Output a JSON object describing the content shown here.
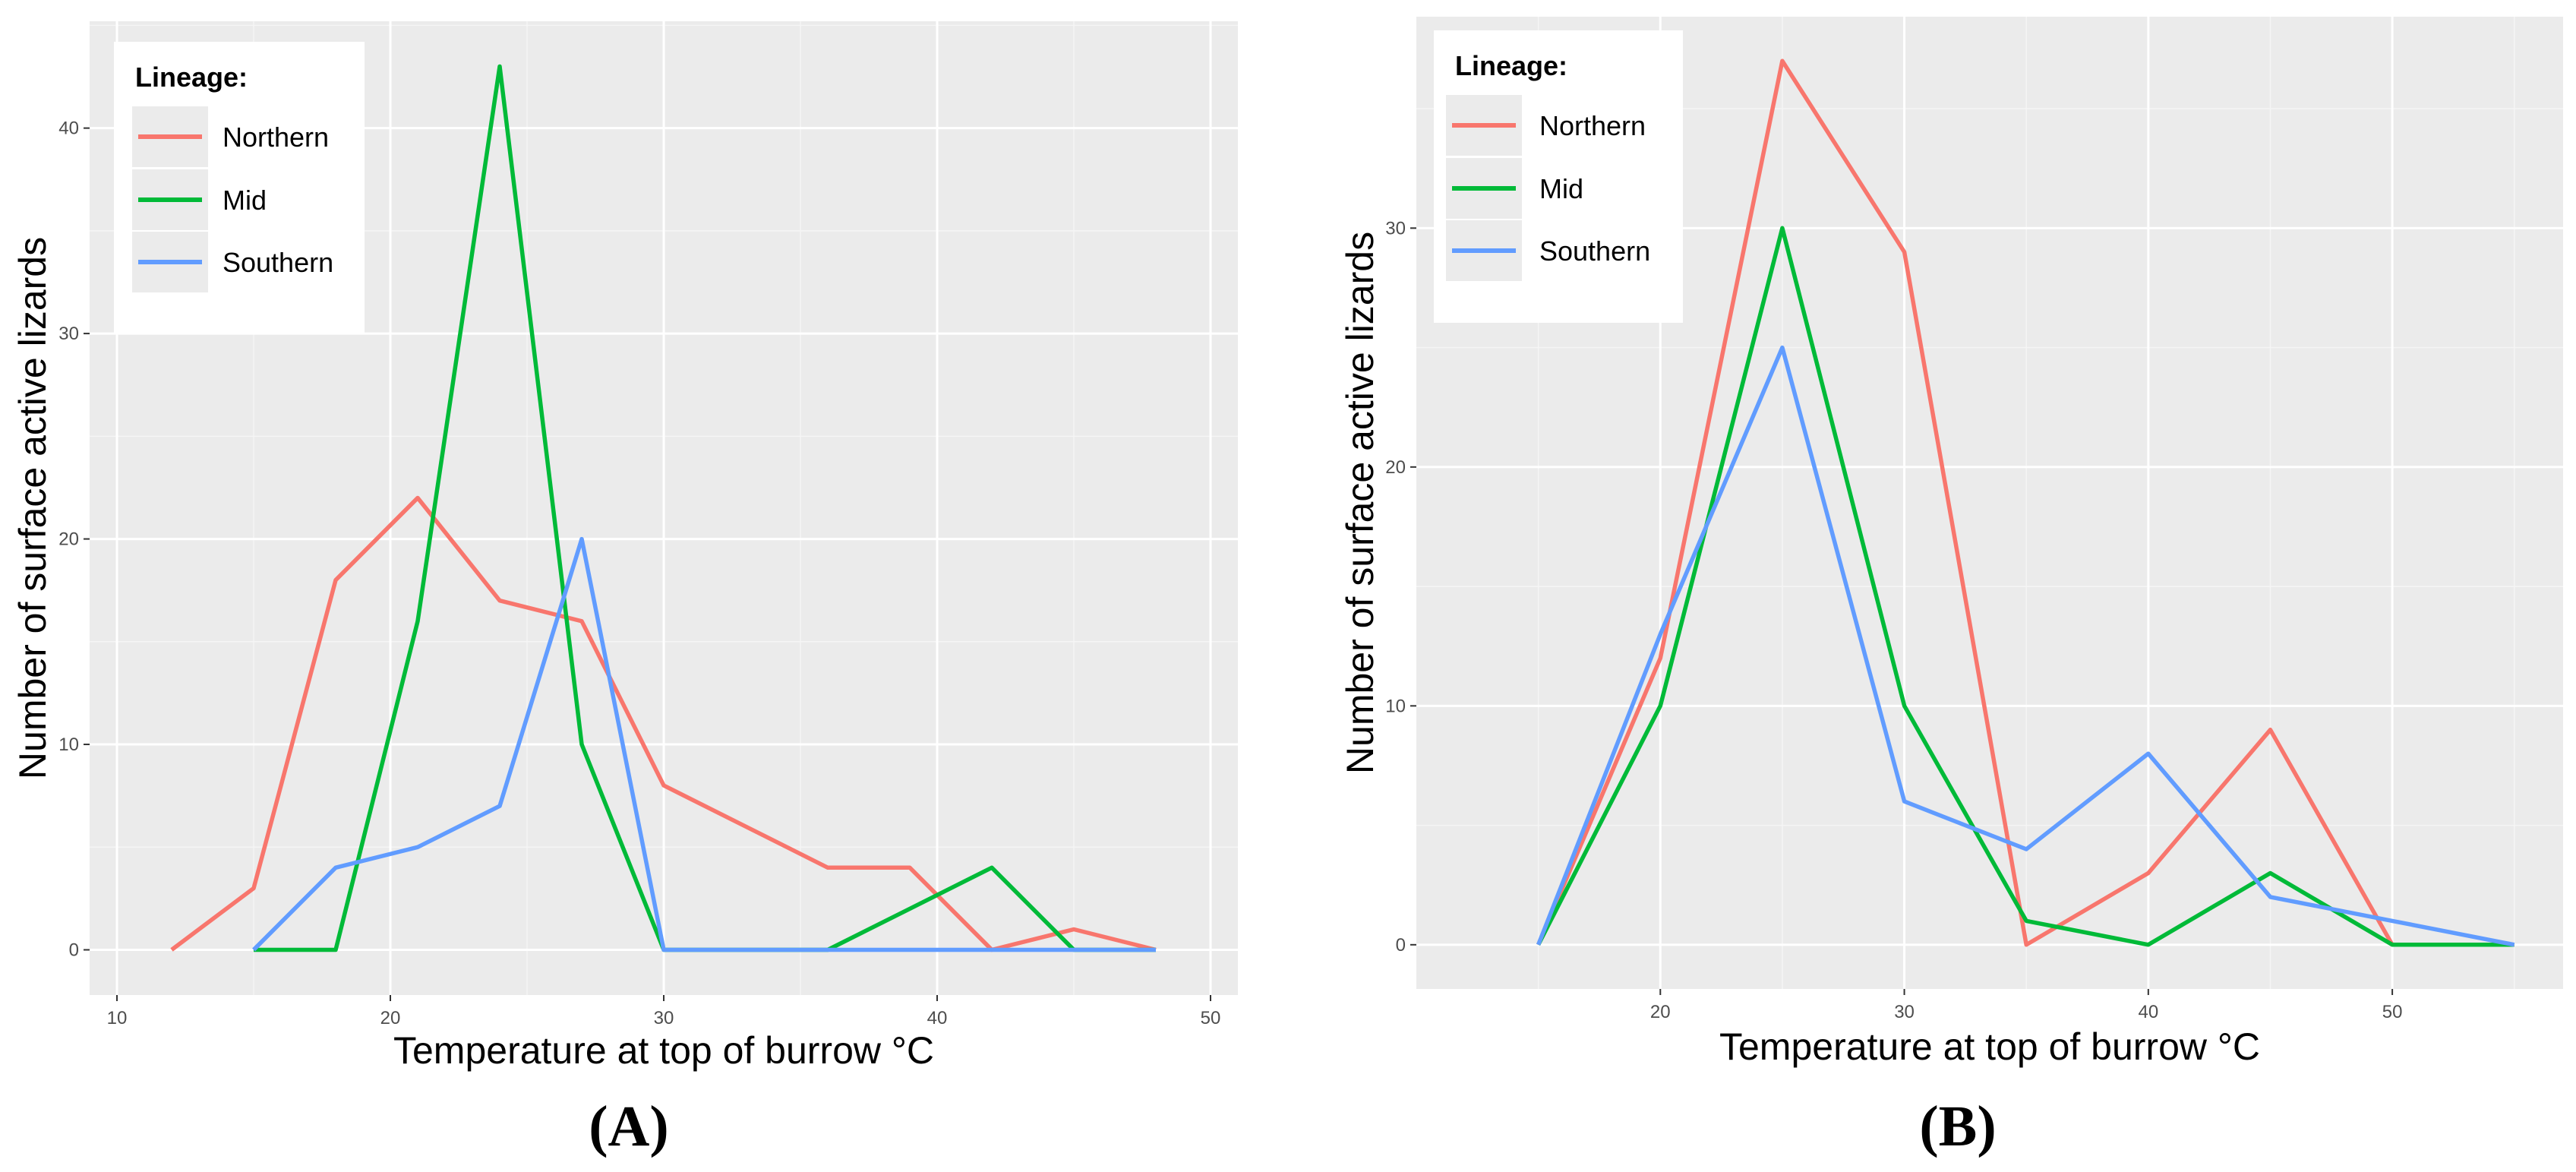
{
  "chart_data": [
    {
      "type": "line",
      "panel_label": "(A)",
      "xlabel": "Temperature at top of burrow °C",
      "ylabel": "Number of surface active lizards",
      "xlim": [
        9,
        51
      ],
      "ylim": [
        -2.2,
        45.2
      ],
      "x_ticks": [
        10,
        20,
        30,
        40,
        50
      ],
      "y_ticks": [
        0,
        10,
        20,
        30,
        40
      ],
      "grid": true,
      "legend": {
        "title": "Lineage:",
        "placement": "top-left",
        "entries": [
          "Northern",
          "Mid",
          "Southern"
        ]
      },
      "series": [
        {
          "name": "Northern",
          "color": "#F8766D",
          "x": [
            12,
            15,
            18,
            21,
            24,
            27,
            30,
            33,
            36,
            39,
            42,
            45,
            48
          ],
          "y": [
            0,
            3,
            18,
            22,
            17,
            16,
            8,
            6,
            4,
            4,
            0,
            1,
            0
          ]
        },
        {
          "name": "Mid",
          "color": "#00BA38",
          "x": [
            15,
            18,
            21,
            24,
            27,
            30,
            33,
            36,
            39,
            42,
            45,
            48
          ],
          "y": [
            0,
            0,
            16,
            43,
            10,
            0,
            0,
            0,
            2,
            4,
            0,
            0
          ]
        },
        {
          "name": "Southern",
          "color": "#619CFF",
          "x": [
            15,
            18,
            21,
            24,
            27,
            30,
            33,
            36,
            39,
            42,
            45,
            48
          ],
          "y": [
            0,
            4,
            5,
            7,
            20,
            0,
            0,
            0,
            0,
            0,
            0,
            0
          ]
        }
      ]
    },
    {
      "type": "line",
      "panel_label": "(B)",
      "xlabel": "Temperature at top of burrow °C",
      "ylabel": "Number of surface active lizards",
      "xlim": [
        10,
        57
      ],
      "ylim": [
        -1.85,
        38.85
      ],
      "x_ticks": [
        20,
        30,
        40,
        50
      ],
      "y_ticks": [
        0,
        10,
        20,
        30
      ],
      "grid": true,
      "legend": {
        "title": "Lineage:",
        "placement": "top-left",
        "entries": [
          "Northern",
          "Mid",
          "Southern"
        ]
      },
      "series": [
        {
          "name": "Northern",
          "color": "#F8766D",
          "x": [
            15,
            20,
            25,
            30,
            35,
            40,
            45,
            50,
            55
          ],
          "y": [
            0,
            12,
            37,
            29,
            0,
            3,
            9,
            0,
            0
          ]
        },
        {
          "name": "Mid",
          "color": "#00BA38",
          "x": [
            15,
            20,
            25,
            30,
            35,
            40,
            45,
            50,
            55
          ],
          "y": [
            0,
            10,
            30,
            10,
            1,
            0,
            3,
            0,
            0
          ]
        },
        {
          "name": "Southern",
          "color": "#619CFF",
          "x": [
            15,
            20,
            25,
            30,
            35,
            40,
            45,
            50,
            55
          ],
          "y": [
            0,
            13,
            25,
            6,
            4,
            8,
            2,
            1,
            0
          ]
        }
      ]
    }
  ]
}
